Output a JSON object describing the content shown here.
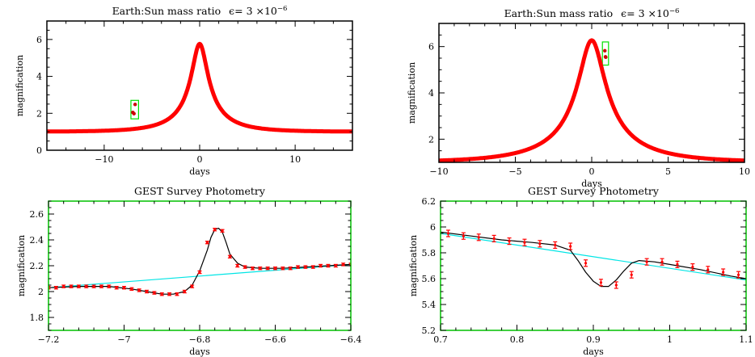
{
  "chart_data": [
    {
      "type": "line",
      "title": "Earth:Sun mass ratio",
      "title_epsilon": "ϵ= 3 ×10",
      "title_exponent": "−6",
      "xlabel": "days",
      "ylabel": "magnification",
      "xlim": [
        -16,
        16
      ],
      "ylim": [
        0,
        7
      ],
      "xticks": [
        -10,
        0,
        10
      ],
      "yticks": [
        0,
        2,
        4,
        6
      ],
      "xtick_labels": [
        "−10",
        "0",
        "10"
      ],
      "ytick_labels": [
        "0",
        "2",
        "4",
        "6"
      ],
      "frame_color": "#000000",
      "series": [
        {
          "color": "#ff0000",
          "model": {
            "u0": 0.1755,
            "tE": 4.9,
            "t0": 0
          }
        }
      ],
      "highlight_box": {
        "color": "#00e000",
        "x": [
          -7.2,
          -6.4
        ],
        "y": [
          1.7,
          2.7
        ]
      },
      "anomaly_points": [
        [
          -7.0,
          2.05
        ],
        [
          -6.88,
          1.98
        ],
        [
          -6.76,
          2.48
        ]
      ]
    },
    {
      "type": "line",
      "title": "Earth:Sun mass ratio",
      "title_epsilon": "ϵ= 3 ×10",
      "title_exponent": "−6",
      "xlabel": "days",
      "ylabel": "magnification",
      "xlim": [
        -10,
        10
      ],
      "ylim": [
        1,
        7
      ],
      "xticks": [
        -10,
        -5,
        0,
        5,
        10
      ],
      "yticks": [
        2,
        4,
        6
      ],
      "xtick_labels": [
        "−10",
        "−5",
        "0",
        "5",
        "10"
      ],
      "ytick_labels": [
        "2",
        "4",
        "6"
      ],
      "frame_color": "#000000",
      "series": [
        {
          "color": "#ff0000",
          "model": {
            "u0": 0.161,
            "tE": 5.5,
            "t0": 0
          }
        }
      ],
      "highlight_box": {
        "color": "#00e000",
        "x": [
          0.7,
          1.1
        ],
        "y": [
          5.2,
          6.2
        ]
      },
      "anomaly_points": [
        [
          0.86,
          5.82
        ],
        [
          0.9,
          5.56
        ],
        [
          0.92,
          5.54
        ]
      ]
    },
    {
      "type": "line",
      "title": "GEST Survey Photometry",
      "xlabel": "days",
      "ylabel": "magnification",
      "xlim": [
        -7.2,
        -6.4
      ],
      "ylim": [
        1.7,
        2.7
      ],
      "xticks": [
        -7.2,
        -7.0,
        -6.8,
        -6.6,
        -6.4
      ],
      "yticks": [
        1.8,
        2.0,
        2.2,
        2.4,
        2.6
      ],
      "xtick_labels": [
        "−7.2",
        "−7",
        "−6.8",
        "−6.6",
        "−6.4"
      ],
      "ytick_labels": [
        "1.8",
        "2",
        "2.2",
        "2.4",
        "2.6"
      ],
      "frame_color": "#00c000",
      "series": [
        {
          "name": "",
          "color": "#00e5e5",
          "x": [
            -7.2,
            -6.4
          ],
          "y": [
            2.03,
            2.21
          ]
        },
        {
          "name": "",
          "color": "#000000",
          "x": [
            -7.2,
            -7.12,
            -7.04,
            -6.98,
            -6.94,
            -6.9,
            -6.87,
            -6.84,
            -6.82,
            -6.8,
            -6.78,
            -6.77,
            -6.76,
            -6.75,
            -6.74,
            -6.73,
            -6.72,
            -6.7,
            -6.68,
            -6.64,
            -6.58,
            -6.52,
            -6.46,
            -6.4
          ],
          "y": [
            2.03,
            2.04,
            2.04,
            2.02,
            2.0,
            1.98,
            1.98,
            2.0,
            2.05,
            2.16,
            2.32,
            2.42,
            2.48,
            2.49,
            2.46,
            2.38,
            2.29,
            2.22,
            2.19,
            2.18,
            2.18,
            2.19,
            2.2,
            2.21
          ]
        }
      ],
      "points": {
        "color": "#ff0000",
        "x": [
          -7.2,
          -7.18,
          -7.16,
          -7.14,
          -7.12,
          -7.1,
          -7.08,
          -7.06,
          -7.04,
          -7.02,
          -7.0,
          -6.98,
          -6.96,
          -6.94,
          -6.92,
          -6.9,
          -6.88,
          -6.86,
          -6.84,
          -6.82,
          -6.8,
          -6.78,
          -6.76,
          -6.74,
          -6.72,
          -6.7,
          -6.68,
          -6.66,
          -6.64,
          -6.62,
          -6.6,
          -6.58,
          -6.56,
          -6.54,
          -6.52,
          -6.5,
          -6.48,
          -6.46,
          -6.44,
          -6.42,
          -6.4
        ],
        "y": [
          2.03,
          2.03,
          2.04,
          2.04,
          2.04,
          2.04,
          2.04,
          2.04,
          2.04,
          2.03,
          2.03,
          2.02,
          2.01,
          2.0,
          1.99,
          1.98,
          1.98,
          1.98,
          2.0,
          2.04,
          2.15,
          2.38,
          2.48,
          2.47,
          2.27,
          2.2,
          2.19,
          2.18,
          2.18,
          2.18,
          2.18,
          2.18,
          2.18,
          2.19,
          2.19,
          2.19,
          2.2,
          2.2,
          2.2,
          2.21,
          2.21
        ],
        "error": 0.01
      }
    },
    {
      "type": "line",
      "title": "GEST Survey Photometry",
      "xlabel": "days",
      "ylabel": "magnification",
      "xlim": [
        0.7,
        1.1
      ],
      "ylim": [
        5.2,
        6.2
      ],
      "xticks": [
        0.7,
        0.8,
        0.9,
        1.0,
        1.1
      ],
      "yticks": [
        5.2,
        5.4,
        5.6,
        5.8,
        6.0,
        6.2
      ],
      "xtick_labels": [
        "0.7",
        "0.8",
        "0.9",
        "1",
        "1.1"
      ],
      "ytick_labels": [
        "5.2",
        "5.4",
        "5.6",
        "5.8",
        "6",
        "6.2"
      ],
      "frame_color": "#00c000",
      "series": [
        {
          "name": "",
          "color": "#00e5e5",
          "x": [
            0.7,
            1.1
          ],
          "y": [
            5.95,
            5.59
          ]
        },
        {
          "name": "",
          "color": "#000000",
          "x": [
            0.7,
            0.74,
            0.78,
            0.82,
            0.85,
            0.87,
            0.88,
            0.89,
            0.9,
            0.91,
            0.92,
            0.93,
            0.94,
            0.95,
            0.96,
            0.98,
            1.0,
            1.04,
            1.08,
            1.1
          ],
          "y": [
            5.96,
            5.93,
            5.9,
            5.88,
            5.86,
            5.82,
            5.74,
            5.65,
            5.58,
            5.54,
            5.54,
            5.59,
            5.66,
            5.72,
            5.74,
            5.73,
            5.71,
            5.67,
            5.62,
            5.6
          ]
        }
      ],
      "points": {
        "color": "#ff0000",
        "x": [
          0.71,
          0.73,
          0.75,
          0.77,
          0.79,
          0.81,
          0.83,
          0.85,
          0.87,
          0.89,
          0.91,
          0.93,
          0.95,
          0.97,
          0.99,
          1.01,
          1.03,
          1.05,
          1.07,
          1.09
        ],
        "y": [
          5.95,
          5.93,
          5.92,
          5.91,
          5.89,
          5.88,
          5.87,
          5.86,
          5.85,
          5.72,
          5.57,
          5.55,
          5.63,
          5.73,
          5.73,
          5.71,
          5.69,
          5.67,
          5.65,
          5.63
        ],
        "error": 0.025
      }
    }
  ]
}
